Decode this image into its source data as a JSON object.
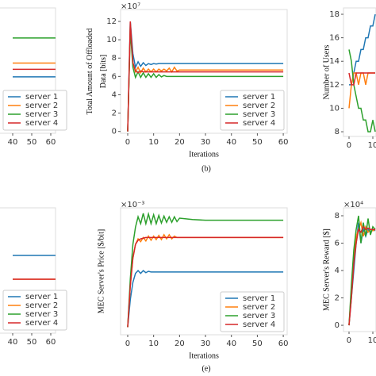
{
  "chart_data": [
    {
      "type": "line",
      "x": [
        40,
        70
      ],
      "series": [
        {
          "name": "server 1",
          "color": "#1f77b4",
          "values": [
            4.5,
            4.5
          ]
        },
        {
          "name": "server 2",
          "color": "#ff7f0e",
          "values": [
            5.6,
            5.6
          ]
        },
        {
          "name": "server 3",
          "color": "#2ca02c",
          "values": [
            7.6,
            7.6
          ]
        },
        {
          "name": "server 4",
          "color": "#d62728",
          "values": [
            5.1,
            5.1
          ]
        }
      ],
      "xlim": [
        30,
        62.5
      ],
      "xticks": [
        40,
        50,
        60
      ],
      "ylim": [
        0,
        10
      ],
      "legend": "lower right"
    },
    {
      "type": "line",
      "title": "",
      "xlabel": "Iterations",
      "ylabel": [
        "Total Amount of Offloaded",
        "Data [bits]"
      ],
      "offset": "×10⁷",
      "caption": "(b)",
      "x": [
        0,
        1,
        2,
        3,
        4,
        5,
        6,
        7,
        8,
        9,
        10,
        11,
        12,
        13,
        14,
        15,
        16,
        17,
        18,
        19,
        20,
        25,
        30,
        40,
        50,
        60
      ],
      "series": [
        {
          "name": "server 1",
          "color": "#1f77b4",
          "values": [
            0,
            12,
            8.5,
            7,
            7.6,
            7.1,
            7.5,
            7.2,
            7.4,
            7.3,
            7.4,
            7.35,
            7.4,
            7.4,
            7.4,
            7.4,
            7.4,
            7.4,
            7.4,
            7.4,
            7.4,
            7.4,
            7.4,
            7.4,
            7.4,
            7.4
          ]
        },
        {
          "name": "server 2",
          "color": "#ff7f0e",
          "values": [
            0,
            11.5,
            7.5,
            6.5,
            7,
            6.4,
            6.9,
            6.5,
            6.8,
            6.5,
            6.8,
            6.5,
            6.8,
            6.6,
            6.8,
            6.6,
            6.9,
            6.5,
            7,
            6.6,
            6.7,
            6.7,
            6.7,
            6.7,
            6.7,
            6.7
          ]
        },
        {
          "name": "server 3",
          "color": "#2ca02c",
          "values": [
            0,
            11,
            7,
            5.9,
            6.5,
            5.9,
            6.4,
            5.9,
            6.3,
            5.9,
            6.3,
            5.9,
            6.2,
            5.95,
            6.1,
            6,
            6,
            6,
            6,
            6,
            6,
            6,
            6,
            6,
            6,
            6
          ]
        },
        {
          "name": "server 4",
          "color": "#d62728",
          "values": [
            0,
            12,
            7.5,
            6.6,
            6.4,
            6.6,
            6.5,
            6.5,
            6.5,
            6.5,
            6.5,
            6.5,
            6.5,
            6.5,
            6.5,
            6.5,
            6.5,
            6.5,
            6.5,
            6.5,
            6.5,
            6.5,
            6.5,
            6.5,
            6.5,
            6.5
          ]
        }
      ],
      "xlim": [
        -2.75,
        61.5
      ],
      "xticks": [
        0,
        10,
        20,
        30,
        40,
        50,
        60
      ],
      "ylim": [
        -0.2,
        13.3
      ],
      "yticks": [
        0,
        2,
        4,
        6,
        8,
        10,
        12
      ],
      "legend": "lower right"
    },
    {
      "type": "line",
      "ylabel": "Number of Users",
      "x": [
        0,
        1,
        2,
        3,
        4,
        5,
        6,
        7,
        8,
        9,
        10,
        11
      ],
      "series": [
        {
          "name": "server 1",
          "color": "#1f77b4",
          "values": [
            12,
            12,
            13,
            14,
            14,
            15,
            15,
            16,
            16,
            17,
            17,
            18
          ]
        },
        {
          "name": "server 2",
          "color": "#ff7f0e",
          "values": [
            10,
            12,
            13,
            13,
            12,
            13,
            13,
            12,
            13,
            13,
            13,
            13
          ]
        },
        {
          "name": "server 3",
          "color": "#2ca02c",
          "values": [
            15,
            14,
            12,
            11,
            10,
            10,
            9,
            9,
            8,
            8,
            9,
            8
          ]
        },
        {
          "name": "server 4",
          "color": "#d62728",
          "values": [
            13,
            12,
            12,
            13,
            13,
            13,
            13,
            13,
            13,
            13,
            13,
            13
          ]
        }
      ],
      "xlim": [
        -2.33,
        11.33
      ],
      "xticks": [
        0,
        10
      ],
      "ylim": [
        7.6,
        18.54
      ],
      "yticks": [
        8,
        10,
        12,
        14,
        16,
        18
      ]
    },
    {
      "type": "line",
      "x": [
        40,
        70
      ],
      "series": [
        {
          "name": "server 1",
          "color": "#1f77b4",
          "values": [
            6.2,
            6.2
          ]
        },
        {
          "name": "server 2",
          "color": "#ff7f0e",
          "values": [
            4.3,
            4.3
          ]
        },
        {
          "name": "server 3",
          "color": "#2ca02c",
          "values": [
            3.2,
            3.2
          ]
        },
        {
          "name": "server 4",
          "color": "#d62728",
          "values": [
            4.3,
            4.3
          ]
        }
      ],
      "xlim": [
        30,
        62.5
      ],
      "xticks": [
        40,
        50,
        60
      ],
      "ylim": [
        0,
        10
      ],
      "legend": "lower right"
    },
    {
      "type": "line",
      "xlabel": "Iterations",
      "ylabel": "MEC Server's Price [$/bit]",
      "offset": "×10⁻³",
      "caption": "(e)",
      "x": [
        0,
        1,
        2,
        3,
        4,
        5,
        6,
        7,
        8,
        9,
        10,
        11,
        12,
        13,
        14,
        15,
        16,
        17,
        18,
        19,
        20,
        25,
        30,
        40,
        50,
        60
      ],
      "series": [
        {
          "name": "server 1",
          "color": "#1f77b4",
          "values": [
            0.1,
            0.5,
            0.75,
            0.88,
            0.92,
            0.88,
            0.92,
            0.89,
            0.91,
            0.9,
            0.9,
            0.9,
            0.9,
            0.9,
            0.9,
            0.9,
            0.9,
            0.9,
            0.9,
            0.9,
            0.9,
            0.9,
            0.9,
            0.9,
            0.9,
            0.9
          ]
        },
        {
          "name": "server 2",
          "color": "#ff7f0e",
          "values": [
            0.1,
            0.7,
            1.1,
            1.3,
            1.38,
            1.34,
            1.4,
            1.35,
            1.42,
            1.36,
            1.42,
            1.37,
            1.43,
            1.37,
            1.44,
            1.38,
            1.44,
            1.38,
            1.42,
            1.4,
            1.4,
            1.4,
            1.4,
            1.4,
            1.4,
            1.4
          ]
        },
        {
          "name": "server 3",
          "color": "#2ca02c",
          "values": [
            0.1,
            0.8,
            1.3,
            1.55,
            1.7,
            1.6,
            1.75,
            1.6,
            1.74,
            1.6,
            1.73,
            1.6,
            1.72,
            1.61,
            1.71,
            1.62,
            1.7,
            1.62,
            1.7,
            1.63,
            1.68,
            1.66,
            1.65,
            1.65,
            1.65,
            1.65
          ]
        },
        {
          "name": "server 4",
          "color": "#d62728",
          "values": [
            0.1,
            0.7,
            1.1,
            1.3,
            1.36,
            1.38,
            1.39,
            1.4,
            1.4,
            1.4,
            1.4,
            1.4,
            1.4,
            1.4,
            1.4,
            1.4,
            1.4,
            1.4,
            1.4,
            1.4,
            1.4,
            1.4,
            1.4,
            1.4,
            1.4,
            1.4
          ]
        }
      ],
      "xlim": [
        -2.75,
        61.5
      ],
      "xticks": [
        0,
        10,
        20,
        30,
        40,
        50,
        60
      ],
      "ylim": [
        -0.01,
        1.83
      ],
      "legend": "lower right"
    },
    {
      "type": "line",
      "ylabel": "MEC Server's Reward [$]",
      "offset": "×10⁴",
      "x": [
        0,
        1,
        2,
        3,
        4,
        5,
        6,
        7,
        8,
        9,
        10,
        11
      ],
      "series": [
        {
          "name": "server 1",
          "color": "#1f77b4",
          "values": [
            0,
            2,
            4,
            6,
            7.5,
            6,
            7,
            6.5,
            7,
            6.8,
            7,
            6.9
          ]
        },
        {
          "name": "server 2",
          "color": "#ff7f0e",
          "values": [
            0,
            2.5,
            5,
            6.5,
            7,
            7.5,
            6.5,
            7.2,
            6.8,
            7,
            6.9,
            7
          ]
        },
        {
          "name": "server 3",
          "color": "#2ca02c",
          "values": [
            0,
            3,
            5.5,
            7,
            8,
            6,
            7.5,
            6.5,
            7.8,
            6.6,
            7.2,
            7
          ]
        },
        {
          "name": "server 4",
          "color": "#d62728",
          "values": [
            0,
            2,
            4.5,
            6,
            7,
            6.8,
            7.2,
            7,
            7.1,
            7,
            7,
            7
          ]
        }
      ],
      "xlim": [
        -2.33,
        11.33
      ],
      "xticks": [
        0,
        10
      ],
      "ylim": [
        -0.46,
        8.58
      ],
      "yticks": [
        0,
        2,
        4,
        6,
        8
      ]
    }
  ]
}
